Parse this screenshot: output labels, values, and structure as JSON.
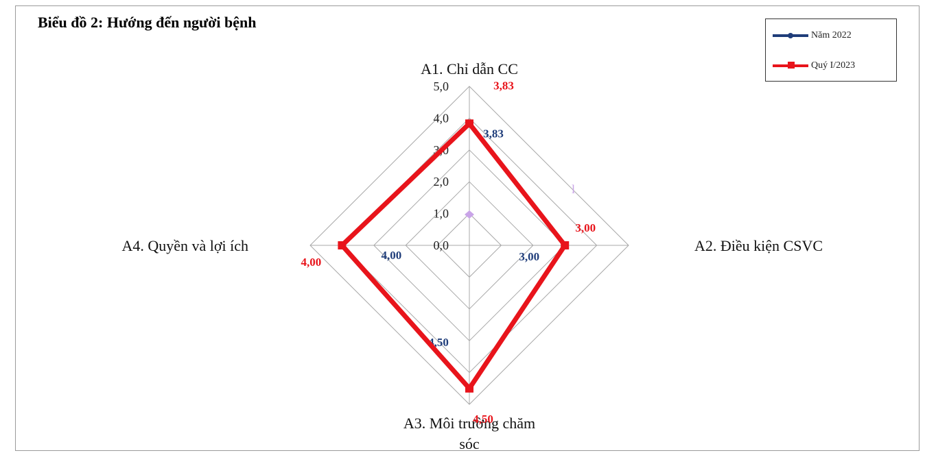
{
  "chart_data": {
    "type": "radar",
    "title": "Biểu đồ 2: Hướng đến người bệnh",
    "categories": [
      "A1. Chỉ dẫn CC",
      "A2. Điều kiện CSVC",
      "A3. Môi trường chăm sóc",
      "A4. Quyền và lợi ích"
    ],
    "series": [
      {
        "name": "Năm 2022",
        "color": "#1f3d7a",
        "values": [
          3.83,
          3.0,
          4.5,
          4.0
        ],
        "labels": [
          "3,83",
          "3,00",
          "4,50",
          "4,00"
        ]
      },
      {
        "name": "Quý I/2023",
        "color": "#e8141b",
        "values": [
          3.83,
          3.0,
          4.5,
          4.0
        ],
        "labels": [
          "3,83",
          "3,00",
          "4,50",
          "4,00"
        ]
      }
    ],
    "ticks": [
      "0,0",
      "1,0",
      "2,0",
      "3,0",
      "4,0",
      "5,0"
    ],
    "rlim": [
      0,
      5
    ],
    "grid": true,
    "legend_position": "top-right",
    "stray_marks": [
      "l"
    ]
  }
}
